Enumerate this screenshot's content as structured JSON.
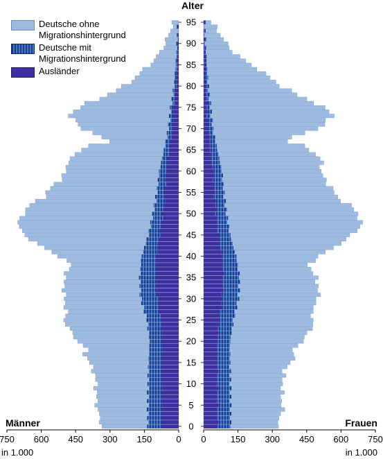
{
  "chart_data": {
    "type": "bar",
    "orientation": "horizontal-population-pyramid",
    "title": "Alter",
    "left_label": "Männer",
    "right_label": "Frauen",
    "unit_left": "in 1.000",
    "unit_right": "in 1.000",
    "x_ticks": [
      750,
      600,
      450,
      300,
      150,
      0
    ],
    "x_ticks_right": [
      0,
      150,
      300,
      450,
      600,
      750
    ],
    "y_ticks": [
      0,
      5,
      10,
      15,
      20,
      25,
      30,
      35,
      40,
      45,
      50,
      55,
      60,
      65,
      70,
      75,
      80,
      85,
      90,
      95
    ],
    "xlim": [
      0,
      750
    ],
    "ylim": [
      0,
      95
    ],
    "legend": [
      {
        "name": "Deutsche ohne Migrationshintergrund",
        "line1": "Deutsche ohne",
        "line2": "Migrationshintergrund"
      },
      {
        "name": "Deutsche mit Migrationshintergrund",
        "line1": "Deutsche mit",
        "line2": "Migrationshintergrund"
      },
      {
        "name": "Ausländer",
        "line1": "Ausländer",
        "line2": ""
      }
    ],
    "legend_placement": "top-left",
    "men_total_anchors": [
      [
        0,
        335
      ],
      [
        4,
        355
      ],
      [
        7,
        360
      ],
      [
        10,
        360
      ],
      [
        13,
        370
      ],
      [
        15,
        390
      ],
      [
        17,
        410
      ],
      [
        18,
        400
      ],
      [
        20,
        440
      ],
      [
        23,
        480
      ],
      [
        25,
        500
      ],
      [
        27,
        490
      ],
      [
        30,
        500
      ],
      [
        33,
        500
      ],
      [
        35,
        500
      ],
      [
        37,
        480
      ],
      [
        38,
        470
      ],
      [
        40,
        520
      ],
      [
        42,
        590
      ],
      [
        44,
        650
      ],
      [
        46,
        690
      ],
      [
        48,
        700
      ],
      [
        50,
        680
      ],
      [
        52,
        650
      ],
      [
        54,
        590
      ],
      [
        56,
        560
      ],
      [
        58,
        520
      ],
      [
        60,
        490
      ],
      [
        62,
        490
      ],
      [
        64,
        450
      ],
      [
        66,
        400
      ],
      [
        67,
        300
      ],
      [
        68,
        330
      ],
      [
        70,
        430
      ],
      [
        71,
        440
      ],
      [
        72,
        440
      ],
      [
        73,
        490
      ],
      [
        74,
        460
      ],
      [
        76,
        400
      ],
      [
        78,
        310
      ],
      [
        80,
        240
      ],
      [
        82,
        190
      ],
      [
        84,
        150
      ],
      [
        86,
        110
      ],
      [
        88,
        80
      ],
      [
        90,
        60
      ],
      [
        92,
        45
      ],
      [
        94,
        30
      ],
      [
        95,
        20
      ]
    ],
    "men_mit_anchors": [
      [
        0,
        60
      ],
      [
        5,
        60
      ],
      [
        10,
        58
      ],
      [
        15,
        57
      ],
      [
        20,
        55
      ],
      [
        25,
        58
      ],
      [
        30,
        70
      ],
      [
        35,
        70
      ],
      [
        40,
        62
      ],
      [
        45,
        48
      ],
      [
        50,
        42
      ],
      [
        55,
        35
      ],
      [
        60,
        30
      ],
      [
        65,
        22
      ],
      [
        70,
        15
      ],
      [
        75,
        12
      ],
      [
        80,
        8
      ],
      [
        85,
        5
      ],
      [
        90,
        3
      ],
      [
        95,
        1
      ]
    ],
    "men_aus_anchors": [
      [
        0,
        75
      ],
      [
        5,
        75
      ],
      [
        10,
        75
      ],
      [
        15,
        75
      ],
      [
        20,
        72
      ],
      [
        25,
        80
      ],
      [
        30,
        95
      ],
      [
        35,
        100
      ],
      [
        40,
        100
      ],
      [
        45,
        85
      ],
      [
        50,
        70
      ],
      [
        55,
        60
      ],
      [
        60,
        55
      ],
      [
        65,
        42
      ],
      [
        70,
        30
      ],
      [
        75,
        22
      ],
      [
        80,
        12
      ],
      [
        85,
        8
      ],
      [
        90,
        5
      ],
      [
        95,
        2
      ]
    ],
    "women_total_anchors": [
      [
        0,
        320
      ],
      [
        4,
        345
      ],
      [
        7,
        340
      ],
      [
        10,
        345
      ],
      [
        13,
        350
      ],
      [
        15,
        380
      ],
      [
        17,
        400
      ],
      [
        18,
        390
      ],
      [
        20,
        430
      ],
      [
        23,
        470
      ],
      [
        25,
        480
      ],
      [
        27,
        470
      ],
      [
        30,
        500
      ],
      [
        33,
        500
      ],
      [
        35,
        490
      ],
      [
        37,
        470
      ],
      [
        38,
        460
      ],
      [
        40,
        500
      ],
      [
        42,
        570
      ],
      [
        44,
        620
      ],
      [
        46,
        670
      ],
      [
        48,
        690
      ],
      [
        50,
        670
      ],
      [
        52,
        640
      ],
      [
        54,
        580
      ],
      [
        56,
        560
      ],
      [
        58,
        530
      ],
      [
        60,
        510
      ],
      [
        62,
        520
      ],
      [
        64,
        490
      ],
      [
        66,
        440
      ],
      [
        67,
        360
      ],
      [
        68,
        390
      ],
      [
        70,
        500
      ],
      [
        71,
        520
      ],
      [
        72,
        540
      ],
      [
        73,
        570
      ],
      [
        74,
        550
      ],
      [
        76,
        490
      ],
      [
        78,
        410
      ],
      [
        80,
        340
      ],
      [
        82,
        290
      ],
      [
        84,
        240
      ],
      [
        86,
        180
      ],
      [
        88,
        130
      ],
      [
        90,
        100
      ],
      [
        92,
        75
      ],
      [
        94,
        50
      ],
      [
        95,
        35
      ]
    ],
    "women_mit_anchors": [
      [
        0,
        58
      ],
      [
        5,
        58
      ],
      [
        10,
        57
      ],
      [
        15,
        55
      ],
      [
        20,
        55
      ],
      [
        25,
        60
      ],
      [
        30,
        72
      ],
      [
        35,
        72
      ],
      [
        40,
        62
      ],
      [
        45,
        50
      ],
      [
        50,
        45
      ],
      [
        55,
        40
      ],
      [
        60,
        38
      ],
      [
        65,
        30
      ],
      [
        70,
        20
      ],
      [
        75,
        15
      ],
      [
        80,
        10
      ],
      [
        85,
        7
      ],
      [
        90,
        4
      ],
      [
        95,
        2
      ]
    ],
    "women_aus_anchors": [
      [
        0,
        60
      ],
      [
        5,
        60
      ],
      [
        10,
        60
      ],
      [
        15,
        60
      ],
      [
        20,
        60
      ],
      [
        25,
        70
      ],
      [
        30,
        80
      ],
      [
        35,
        85
      ],
      [
        40,
        80
      ],
      [
        45,
        65
      ],
      [
        50,
        55
      ],
      [
        55,
        48
      ],
      [
        60,
        42
      ],
      [
        65,
        30
      ],
      [
        70,
        20
      ],
      [
        75,
        15
      ],
      [
        80,
        10
      ],
      [
        85,
        7
      ],
      [
        90,
        4
      ],
      [
        95,
        2
      ]
    ],
    "colors": {
      "ohne": "#9dbbe0",
      "ohne_stroke": "#7f9cc4",
      "mit": "#2a55a8",
      "mit_stripe": "#0b1f66",
      "aus": "#3d2fa0"
    }
  }
}
